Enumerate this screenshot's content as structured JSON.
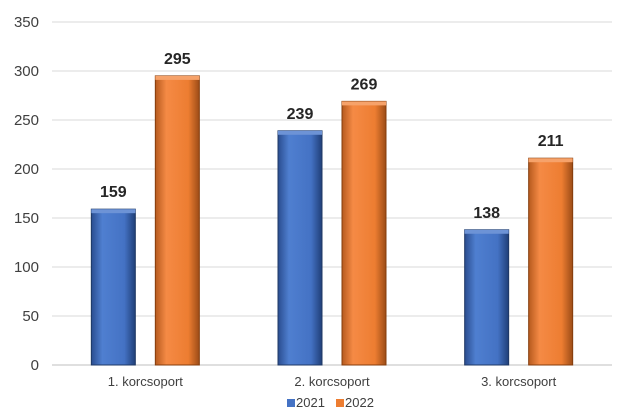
{
  "chart_data": {
    "type": "bar",
    "title": "",
    "xlabel": "",
    "ylabel": "",
    "categories": [
      "1. korcsoport",
      "2. korcsoport",
      "3. korcsoport"
    ],
    "series": [
      {
        "name": "2021",
        "values": [
          159,
          239,
          138
        ],
        "color": "#4472c4"
      },
      {
        "name": "2022",
        "values": [
          295,
          269,
          211
        ],
        "color": "#ed7d31"
      }
    ],
    "ylim": [
      0,
      350
    ],
    "yticks": [
      0,
      50,
      100,
      150,
      200,
      250,
      300,
      350
    ],
    "grid": true,
    "legend_position": "bottom",
    "data_labels": true
  }
}
